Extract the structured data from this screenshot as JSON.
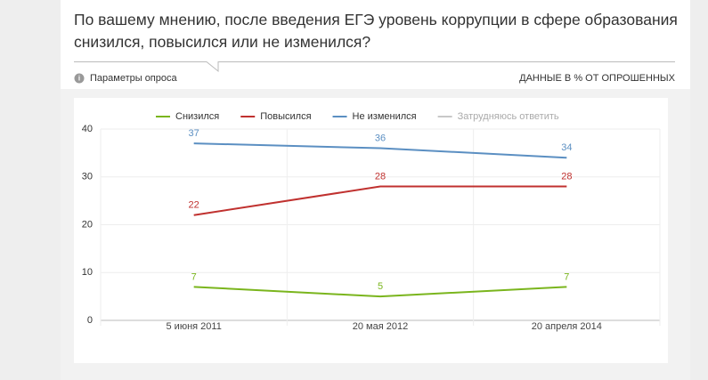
{
  "chart_data": {
    "type": "line",
    "title": "По вашему мнению, после введения ЕГЭ уровень коррупции в сфере образования снизился, повысился или не изменился?",
    "annotations": [
      "Параметры опроса",
      "ДАННЫЕ В % ОТ ОПРОШЕННЫХ"
    ],
    "categories": [
      "5 июня 2011",
      "20 мая 2012",
      "20 апреля 2014"
    ],
    "series": [
      {
        "name": "Снизился",
        "color": "#7ab51d",
        "values": [
          7,
          5,
          7
        ]
      },
      {
        "name": "Повысился",
        "color": "#c0312f",
        "values": [
          22,
          28,
          28
        ]
      },
      {
        "name": "Не изменился",
        "color": "#5b8fc2",
        "values": [
          37,
          36,
          34
        ]
      },
      {
        "name": "Затрудняюсь ответить",
        "color": "#c8c8c8",
        "values": [
          null,
          null,
          null
        ]
      }
    ],
    "ylim": [
      0,
      40
    ],
    "yticks": [
      0,
      10,
      20,
      30,
      40
    ],
    "grid": true
  }
}
